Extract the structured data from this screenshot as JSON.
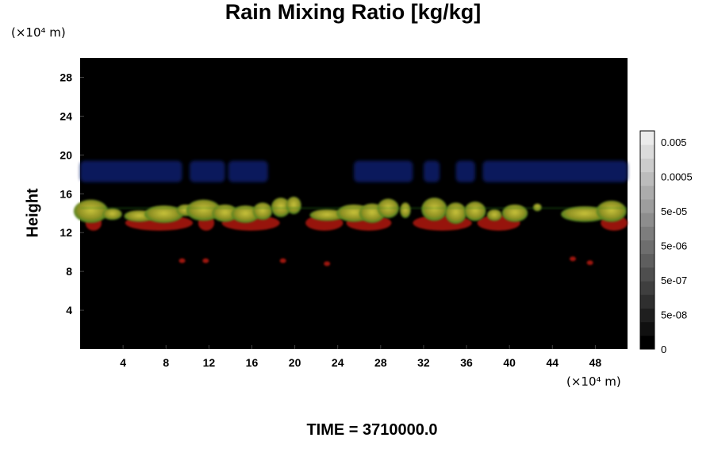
{
  "chart_data": {
    "type": "heatmap",
    "title": "Rain Mixing Ratio [kg/kg]",
    "ylabel": "Height",
    "x_unit": "(×10⁴ m)",
    "y_unit": "(×10⁴ m)",
    "x_ticks": [
      "4",
      "8",
      "12",
      "16",
      "20",
      "24",
      "28",
      "32",
      "36",
      "40",
      "44",
      "48"
    ],
    "y_ticks": [
      "4",
      "8",
      "12",
      "16",
      "20",
      "24",
      "28"
    ],
    "xlim": [
      0,
      51
    ],
    "ylim": [
      0,
      30
    ],
    "colorbar": {
      "labels": [
        "0.005",
        "0.0005",
        "5e-05",
        "5e-06",
        "5e-07",
        "5e-08",
        "0"
      ],
      "levels": 16
    },
    "footer": "TIME = 3710000.0",
    "features": {
      "blue_band_y": [
        17.2,
        19.4
      ],
      "green_yellow_band_y": [
        13.0,
        15.6
      ],
      "red_band_y": [
        12.2,
        13.8
      ],
      "red_dots": [
        {
          "x": 9.5,
          "y": 9.1
        },
        {
          "x": 11.7,
          "y": 9.1
        },
        {
          "x": 18.9,
          "y": 9.1
        },
        {
          "x": 23.0,
          "y": 8.8
        },
        {
          "x": 45.9,
          "y": 9.3
        },
        {
          "x": 47.5,
          "y": 8.9
        }
      ]
    },
    "colors": {
      "background": "#000000",
      "blue": "#0f1c66",
      "green": "#2f8a1e",
      "yellow": "#b0aa2a",
      "red": "#a0140f"
    }
  }
}
